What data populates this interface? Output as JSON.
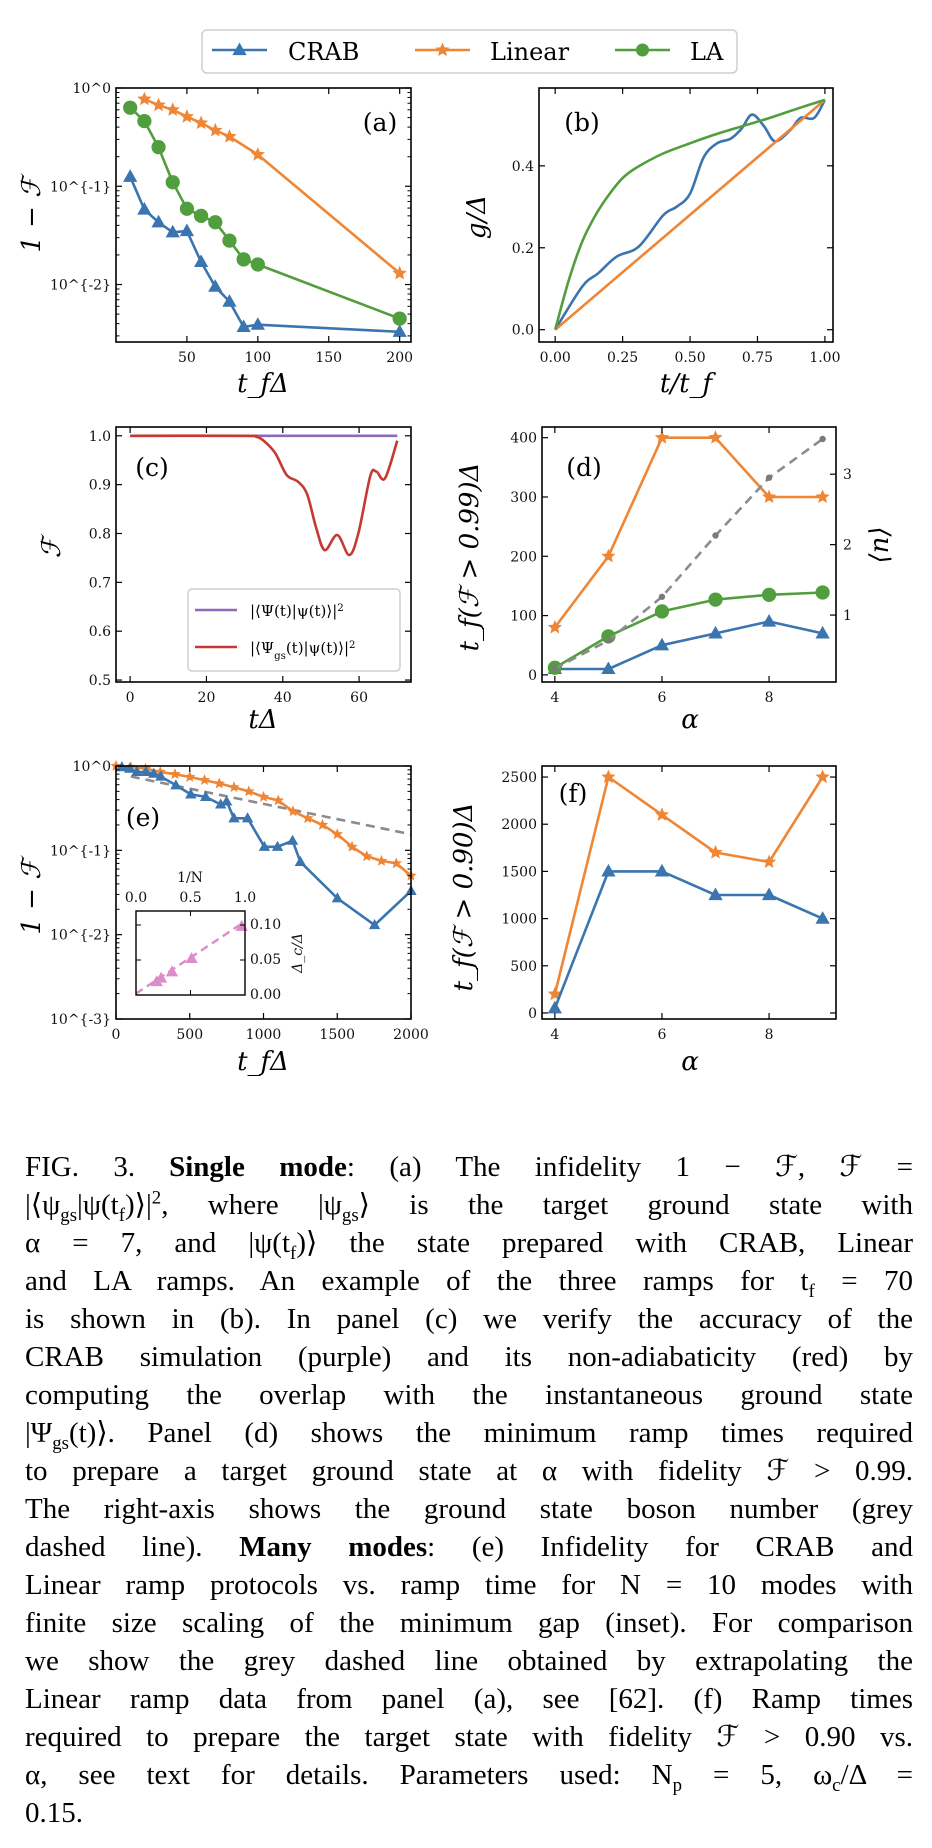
{
  "legend": {
    "items": [
      {
        "name": "CRAB",
        "color": "#3b75af",
        "marker": "triangle"
      },
      {
        "name": "Linear",
        "color": "#ef8636",
        "marker": "star"
      },
      {
        "name": "LA",
        "color": "#519e3e",
        "marker": "circle"
      }
    ]
  },
  "chart_data": [
    {
      "panel": "(a)",
      "type": "line",
      "xlabel": "t_fΔ",
      "ylabel": "1 − ℱ",
      "yscale": "log",
      "xlim": [
        0,
        208
      ],
      "ylim": [
        0.0026,
        1
      ],
      "xticks": [
        50,
        100,
        150,
        200
      ],
      "xticklabels": [
        "50",
        "100",
        "150",
        "200"
      ],
      "yticks": [
        1,
        0.1,
        0.01
      ],
      "yticklabels": [
        "10^0",
        "10^{-1}",
        "10^{-2}"
      ],
      "series": [
        {
          "name": "CRAB",
          "color": "#3b75af",
          "marker": "triangle",
          "x": [
            10,
            20,
            30,
            40,
            50,
            60,
            70,
            80,
            90,
            100,
            200
          ],
          "y": [
            0.125,
            0.058,
            0.043,
            0.034,
            0.035,
            0.017,
            0.0095,
            0.0067,
            0.0037,
            0.0039,
            0.0033
          ]
        },
        {
          "name": "Linear",
          "color": "#ef8636",
          "marker": "star",
          "x": [
            20,
            30,
            40,
            50,
            60,
            70,
            80,
            100,
            200
          ],
          "y": [
            0.77,
            0.67,
            0.6,
            0.51,
            0.44,
            0.37,
            0.32,
            0.21,
            0.013
          ]
        },
        {
          "name": "LA",
          "color": "#519e3e",
          "marker": "circle",
          "x": [
            10,
            20,
            30,
            40,
            50,
            60,
            70,
            80,
            90,
            100,
            200
          ],
          "y": [
            0.63,
            0.46,
            0.25,
            0.11,
            0.059,
            0.05,
            0.043,
            0.028,
            0.018,
            0.016,
            0.0045
          ]
        }
      ]
    },
    {
      "panel": "(b)",
      "type": "line",
      "xlabel": "t/t_f",
      "ylabel": "g/Δ",
      "xlim": [
        -0.06,
        1.03
      ],
      "ylim": [
        -0.03,
        0.59
      ],
      "xticks": [
        0,
        0.25,
        0.5,
        0.75,
        1.0
      ],
      "xticklabels": [
        "0.00",
        "0.25",
        "0.50",
        "0.75",
        "1.00"
      ],
      "yticks": [
        0,
        0.2,
        0.4
      ],
      "yticklabels": [
        "0.0",
        "0.2",
        "0.4"
      ],
      "series": [
        {
          "name": "CRAB",
          "color": "#3b75af",
          "marker": "none",
          "x": [
            0,
            0.1,
            0.16,
            0.227,
            0.31,
            0.4,
            0.45,
            0.5,
            0.55,
            0.6,
            0.65,
            0.69,
            0.73,
            0.775,
            0.815,
            0.87,
            0.91,
            0.96,
            1.0
          ],
          "y": [
            0,
            0.105,
            0.138,
            0.178,
            0.203,
            0.279,
            0.3,
            0.332,
            0.42,
            0.455,
            0.466,
            0.49,
            0.525,
            0.496,
            0.46,
            0.486,
            0.517,
            0.517,
            0.561
          ]
        },
        {
          "name": "Linear",
          "color": "#ef8636",
          "marker": "none",
          "x": [
            0,
            1.0
          ],
          "y": [
            0,
            0.561
          ]
        },
        {
          "name": "LA",
          "color": "#519e3e",
          "marker": "none",
          "x": [
            0,
            0.05,
            0.1,
            0.15,
            0.2,
            0.25,
            0.3,
            0.4,
            0.5,
            0.6,
            0.7,
            0.8,
            0.9,
            1.0
          ],
          "y": [
            0,
            0.12,
            0.215,
            0.28,
            0.33,
            0.37,
            0.395,
            0.43,
            0.455,
            0.478,
            0.498,
            0.518,
            0.54,
            0.561
          ]
        }
      ]
    },
    {
      "panel": "(c)",
      "type": "line",
      "xlabel": "tΔ",
      "ylabel": "ℱ",
      "xlim": [
        -3.7,
        73.6
      ],
      "ylim": [
        0.496,
        1.018
      ],
      "xticks": [
        0,
        20,
        40,
        60
      ],
      "xticklabels": [
        "0",
        "20",
        "40",
        "60"
      ],
      "yticks": [
        0.5,
        0.6,
        0.7,
        0.8,
        0.9,
        1.0
      ],
      "yticklabels": [
        "0.5",
        "0.6",
        "0.7",
        "0.8",
        "0.9",
        "1.0"
      ],
      "legend_position": "lower-right",
      "series": [
        {
          "name": "|⟨Ψ(t)|ψ(t)⟩|^2",
          "color": "#8d69b8",
          "marker": "none",
          "x": [
            0,
            70
          ],
          "y": [
            1.0,
            1.0
          ]
        },
        {
          "name": "|⟨Ψ_{gs}(t)|ψ(t)⟩|^2",
          "color": "#c53a32",
          "marker": "none",
          "x": [
            0,
            30,
            33,
            35,
            38,
            41,
            44,
            46.4,
            48.8,
            51,
            54.3,
            57.4,
            59.8,
            62.9,
            64.5,
            66.8,
            70
          ],
          "y": [
            1,
            1,
            0.998,
            0.99,
            0.965,
            0.92,
            0.906,
            0.88,
            0.81,
            0.766,
            0.797,
            0.756,
            0.8,
            0.917,
            0.927,
            0.913,
            0.99
          ]
        }
      ]
    },
    {
      "panel": "(d)",
      "type": "line",
      "xlabel": "α",
      "ylabel": "t_f(ℱ > 0.99)Δ",
      "ylabel_right": "⟨n⟩",
      "xlim": [
        3.76,
        9.25
      ],
      "ylim": [
        -12,
        418
      ],
      "ylim_right": [
        0.05,
        3.67
      ],
      "xticks": [
        4,
        6,
        8
      ],
      "xticklabels": [
        "4",
        "6",
        "8"
      ],
      "yticks": [
        0,
        100,
        200,
        300,
        400
      ],
      "yticklabels": [
        "0",
        "100",
        "200",
        "300",
        "400"
      ],
      "yticks_right": [
        1,
        2,
        3
      ],
      "yticklabels_right": [
        "1",
        "2",
        "3"
      ],
      "series": [
        {
          "name": "CRAB",
          "color": "#3b75af",
          "marker": "triangle",
          "x": [
            4,
            5,
            6,
            7,
            8,
            9
          ],
          "y": [
            10,
            10,
            50,
            70,
            90,
            70
          ]
        },
        {
          "name": "Linear",
          "color": "#ef8636",
          "marker": "star",
          "x": [
            4,
            5,
            6,
            7,
            8,
            9
          ],
          "y": [
            80,
            200,
            400,
            400,
            300,
            300
          ]
        },
        {
          "name": "LA",
          "color": "#519e3e",
          "marker": "circle",
          "x": [
            4,
            5,
            6,
            7,
            8,
            9
          ],
          "y": [
            12,
            65,
            107,
            127,
            135,
            139
          ]
        },
        {
          "color": "#8c8c8c",
          "marker": "dot",
          "linestyle": "dashed",
          "axis": "right",
          "x": [
            4,
            5,
            6,
            7,
            8,
            9
          ],
          "y": [
            0.24,
            0.64,
            1.26,
            2.13,
            2.95,
            3.5
          ]
        }
      ]
    },
    {
      "panel": "(e)",
      "type": "line",
      "xlabel": "t_fΔ",
      "ylabel": "1 − ℱ",
      "yscale": "log",
      "xlim": [
        0,
        2000
      ],
      "ylim": [
        0.001,
        1
      ],
      "xticks": [
        0,
        500,
        1000,
        1500,
        2000
      ],
      "xticklabels": [
        "0",
        "500",
        "1000",
        "1500",
        "2000"
      ],
      "yticks": [
        1,
        0.1,
        0.01,
        0.001
      ],
      "yticklabels": [
        "10^0",
        "10^{-1}",
        "10^{-2}",
        "10^{-3}"
      ],
      "series": [
        {
          "color": "#8c8c8c",
          "marker": "none",
          "linestyle": "dashed",
          "x": [
            100,
            2000
          ],
          "y": [
            0.75,
            0.155
          ]
        },
        {
          "name": "Linear",
          "color": "#ef8636",
          "marker": "star",
          "x": [
            0,
            100,
            200,
            300,
            400,
            500,
            600,
            700,
            800,
            900,
            1000,
            1100,
            1200,
            1300,
            1400,
            1500,
            1600,
            1700,
            1800,
            1900,
            2000
          ],
          "y": [
            1.0,
            0.97,
            0.93,
            0.85,
            0.8,
            0.74,
            0.68,
            0.62,
            0.56,
            0.5,
            0.43,
            0.39,
            0.29,
            0.24,
            0.2,
            0.155,
            0.11,
            0.085,
            0.075,
            0.07,
            0.05
          ]
        },
        {
          "name": "CRAB",
          "color": "#3b75af",
          "marker": "triangle",
          "x": [
            40,
            93,
            142,
            203,
            256,
            304,
            406,
            507,
            608,
            710,
            750,
            800,
            892,
            1006,
            1095,
            1197,
            1250,
            1501,
            1753,
            2000
          ],
          "y": [
            0.97,
            0.93,
            0.85,
            0.85,
            0.81,
            0.75,
            0.59,
            0.46,
            0.43,
            0.35,
            0.38,
            0.24,
            0.24,
            0.11,
            0.11,
            0.13,
            0.073,
            0.027,
            0.013,
            0.033
          ]
        }
      ],
      "inset": {
        "xlabel": "1/N",
        "ylabel": "Δ_c/Δ",
        "xlim": [
          0,
          1
        ],
        "ylim": [
          0,
          0.12
        ],
        "xticks": [
          0,
          0.5,
          1.0
        ],
        "xticklabels": [
          "0.0",
          "0.5",
          "1.0"
        ],
        "yticks": [
          0,
          0.05,
          0.1
        ],
        "yticklabels": [
          "0.00",
          "0.05",
          "0.10"
        ],
        "color": "#dd8cc9",
        "points": {
          "x": [
            0.19,
            0.23,
            0.33,
            0.51,
            0.97
          ],
          "y": [
            0.019,
            0.024,
            0.033,
            0.052,
            0.098
          ]
        },
        "fit": {
          "x": [
            0,
            1
          ],
          "y": [
            0.002,
            0.105
          ]
        }
      }
    },
    {
      "panel": "(f)",
      "type": "line",
      "xlabel": "α",
      "ylabel": "t_f(ℱ > 0.90)Δ",
      "xlim": [
        3.76,
        9.25
      ],
      "ylim": [
        -64,
        2617
      ],
      "xticks": [
        4,
        6,
        8
      ],
      "xticklabels": [
        "4",
        "6",
        "8"
      ],
      "yticks": [
        0,
        500,
        1000,
        1500,
        2000,
        2500
      ],
      "yticklabels": [
        "0",
        "500",
        "1000",
        "1500",
        "2000",
        "2500"
      ],
      "series": [
        {
          "name": "Linear",
          "color": "#ef8636",
          "marker": "star",
          "x": [
            4,
            5,
            6,
            7,
            8,
            9
          ],
          "y": [
            200,
            2500,
            2100,
            1700,
            1600,
            2500
          ]
        },
        {
          "name": "CRAB",
          "color": "#3b75af",
          "marker": "triangle",
          "x": [
            4,
            5,
            6,
            7,
            8,
            9
          ],
          "y": [
            50,
            1500,
            1500,
            1250,
            1250,
            1000
          ]
        }
      ]
    }
  ],
  "caption": {
    "lines": [
      [
        "FIG. 3.",
        "Single mode",
        ": (a) The infidelity 1 − ℱ, ℱ ="
      ],
      [
        "|⟨ψ_{gs}|ψ(t_f)⟩|^2, where |ψ_{gs}⟩ is the target ground state with"
      ],
      [
        "α = 7, and |ψ(t_f)⟩ the state prepared with CRAB, Linear"
      ],
      [
        "and LA ramps. An example of the three ramps for t_f = 70"
      ],
      [
        "is shown in (b). In panel (c) we verify the accuracy of the"
      ],
      [
        "CRAB simulation (purple) and its non-adiabaticity (red) by"
      ],
      [
        "computing the overlap with the instantaneous ground state"
      ],
      [
        "|Ψ_{gs}(t)⟩. Panel (d) shows the minimum ramp times required"
      ],
      [
        "to prepare a target ground state at α with fidelity ℱ > 0.99."
      ],
      [
        "The right-axis shows the ground state boson number (grey"
      ],
      [
        "dashed line). ",
        "Many modes",
        ": (e) Infidelity for CRAB and"
      ],
      [
        "Linear ramp protocols vs. ramp time for N = 10 modes with"
      ],
      [
        "finite size scaling of the minimum gap (inset). For comparison"
      ],
      [
        "we show the grey dashed line obtained by extrapolating the"
      ],
      [
        "Linear ramp data from panel (a), see [62]. (f) Ramp times"
      ],
      [
        "required to prepare the target state with fidelity ℱ > 0.90 vs."
      ],
      [
        "α, see text for details. Parameters used: N_p = 5, ω_c/Δ ="
      ],
      [
        "0.15."
      ]
    ]
  }
}
